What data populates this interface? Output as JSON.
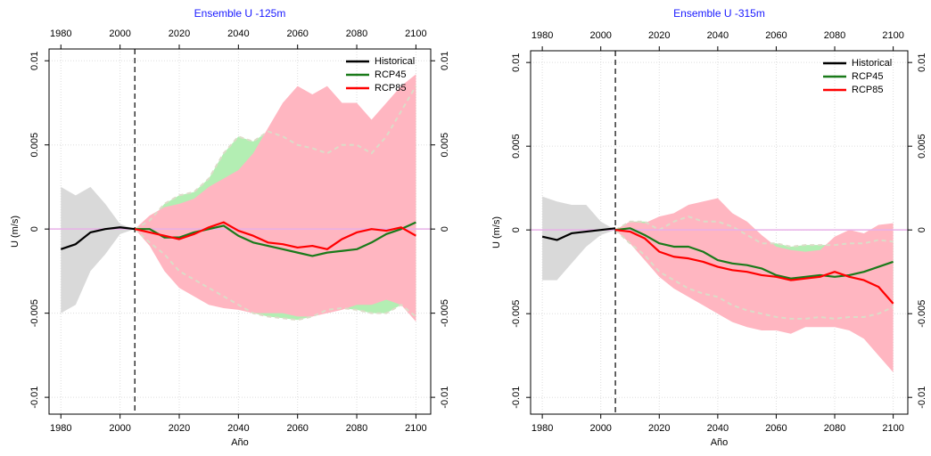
{
  "chart_data": [
    {
      "type": "line",
      "title": "Ensemble U -125m",
      "xlabel": "Año",
      "ylabel": "U (m/s)",
      "xlim": [
        1976,
        2105
      ],
      "ylim": [
        -0.011,
        0.0107
      ],
      "xticks": [
        1980,
        2000,
        2020,
        2040,
        2060,
        2080,
        2100
      ],
      "yticks": [
        -0.01,
        -0.005,
        0,
        0.005,
        0.01
      ],
      "grid": true,
      "legend": "topright",
      "vline_x": 2005,
      "hline_y": 0,
      "series": [
        {
          "name": "Historical",
          "color": "#000000",
          "band_color": "#d9d9d9",
          "x": [
            1980,
            1985,
            1990,
            1995,
            2000,
            2005
          ],
          "values": [
            -0.0012,
            -0.0009,
            -0.0002,
            0,
            0.0001,
            0
          ],
          "upper": [
            0.0025,
            0.002,
            0.0025,
            0.0015,
            0.0003,
            0
          ],
          "lower": [
            -0.005,
            -0.0045,
            -0.0025,
            -0.0015,
            -0.0003,
            0
          ]
        },
        {
          "name": "RCP45",
          "color": "#1a7a1a",
          "band_color": "#b3eeb3",
          "x": [
            2005,
            2010,
            2015,
            2020,
            2025,
            2030,
            2035,
            2040,
            2045,
            2050,
            2055,
            2060,
            2065,
            2070,
            2075,
            2080,
            2085,
            2090,
            2095,
            2100
          ],
          "values": [
            0,
            0,
            -0.0005,
            -0.0005,
            -0.0002,
            0,
            0.0002,
            -0.0004,
            -0.0008,
            -0.001,
            -0.0012,
            -0.0014,
            -0.0016,
            -0.0014,
            -0.0013,
            -0.0012,
            -0.0008,
            -0.0003,
            0,
            0.0004
          ],
          "upper": [
            0,
            0.0005,
            0.0015,
            0.002,
            0.0022,
            0.003,
            0.0045,
            0.0055,
            0.0052,
            0.0058,
            0.0055,
            0.005,
            0.0048,
            0.0045,
            0.005,
            0.005,
            0.0045,
            0.0055,
            0.007,
            0.0085
          ],
          "lower": [
            0,
            -0.0008,
            -0.0015,
            -0.0025,
            -0.003,
            -0.0035,
            -0.004,
            -0.0045,
            -0.005,
            -0.0052,
            -0.0053,
            -0.0054,
            -0.0052,
            -0.0048,
            -0.0047,
            -0.0048,
            -0.005,
            -0.005,
            -0.0045,
            -0.0052
          ]
        },
        {
          "name": "RCP85",
          "color": "#ff0000",
          "band_color": "#ffb6c1",
          "x": [
            2005,
            2010,
            2015,
            2020,
            2025,
            2030,
            2035,
            2040,
            2045,
            2050,
            2055,
            2060,
            2065,
            2070,
            2075,
            2080,
            2085,
            2090,
            2095,
            2100
          ],
          "values": [
            0,
            -0.0002,
            -0.0004,
            -0.0006,
            -0.0003,
            0.0001,
            0.0004,
            -0.0001,
            -0.0004,
            -0.0008,
            -0.0009,
            -0.0011,
            -0.001,
            -0.0012,
            -0.0006,
            -0.0002,
            0,
            -0.0001,
            0.0001,
            -0.0004
          ],
          "upper": [
            0,
            0.0008,
            0.0013,
            0.0015,
            0.0018,
            0.0025,
            0.003,
            0.0035,
            0.0045,
            0.006,
            0.0075,
            0.0085,
            0.008,
            0.0085,
            0.0075,
            0.0075,
            0.0065,
            0.0075,
            0.0085,
            0.0092
          ],
          "lower": [
            0,
            -0.001,
            -0.0025,
            -0.0035,
            -0.004,
            -0.0045,
            -0.0047,
            -0.0048,
            -0.005,
            -0.005,
            -0.005,
            -0.0052,
            -0.0052,
            -0.005,
            -0.0048,
            -0.0045,
            -0.0045,
            -0.0042,
            -0.0045,
            -0.0055
          ]
        }
      ]
    },
    {
      "type": "line",
      "title": "Ensemble U -315m",
      "xlabel": "Año",
      "ylabel": "U (m/s)",
      "xlim": [
        1976,
        2105
      ],
      "ylim": [
        -0.011,
        0.0107
      ],
      "xticks": [
        1980,
        2000,
        2020,
        2040,
        2060,
        2080,
        2100
      ],
      "yticks": [
        -0.01,
        -0.005,
        0,
        0.005,
        0.01
      ],
      "grid": true,
      "legend": "topright",
      "vline_x": 2005,
      "hline_y": 0,
      "series": [
        {
          "name": "Historical",
          "color": "#000000",
          "band_color": "#d9d9d9",
          "x": [
            1980,
            1985,
            1990,
            1995,
            2000,
            2005
          ],
          "values": [
            -0.0004,
            -0.0006,
            -0.0002,
            -0.0001,
            0,
            0.0001
          ],
          "upper": [
            0.002,
            0.0017,
            0.0015,
            0.0015,
            0.0005,
            0
          ],
          "lower": [
            -0.003,
            -0.003,
            -0.002,
            -0.001,
            -0.0003,
            0
          ]
        },
        {
          "name": "RCP45",
          "color": "#1a7a1a",
          "band_color": "#b3eeb3",
          "x": [
            2005,
            2010,
            2015,
            2020,
            2025,
            2030,
            2035,
            2040,
            2045,
            2050,
            2055,
            2060,
            2065,
            2070,
            2075,
            2080,
            2085,
            2090,
            2095,
            2100
          ],
          "values": [
            0,
            0.0001,
            -0.0003,
            -0.0008,
            -0.001,
            -0.001,
            -0.0013,
            -0.0018,
            -0.002,
            -0.0021,
            -0.0023,
            -0.0027,
            -0.0029,
            -0.0028,
            -0.0027,
            -0.0028,
            -0.0027,
            -0.0025,
            -0.0022,
            -0.0019
          ],
          "upper": [
            0,
            0.0005,
            0.0005,
            0,
            0.0005,
            0.0008,
            0.0005,
            0.0005,
            0.0002,
            -0.0003,
            -0.0008,
            -0.0008,
            -0.001,
            -0.0009,
            -0.0009,
            -0.0009,
            -0.0008,
            -0.0008,
            -0.0006,
            -0.0007
          ],
          "lower": [
            0,
            -0.0008,
            -0.0015,
            -0.0025,
            -0.003,
            -0.0035,
            -0.0038,
            -0.004,
            -0.0045,
            -0.0048,
            -0.005,
            -0.0052,
            -0.0053,
            -0.0053,
            -0.0052,
            -0.0053,
            -0.0052,
            -0.0052,
            -0.005,
            -0.0046
          ]
        },
        {
          "name": "RCP85",
          "color": "#ff0000",
          "band_color": "#ffb6c1",
          "x": [
            2005,
            2010,
            2015,
            2020,
            2025,
            2030,
            2035,
            2040,
            2045,
            2050,
            2055,
            2060,
            2065,
            2070,
            2075,
            2080,
            2085,
            2090,
            2095,
            2100
          ],
          "values": [
            0,
            -0.0001,
            -0.0005,
            -0.0013,
            -0.0016,
            -0.0017,
            -0.0019,
            -0.0022,
            -0.0024,
            -0.0025,
            -0.0027,
            -0.0028,
            -0.003,
            -0.0029,
            -0.0028,
            -0.0025,
            -0.0028,
            -0.003,
            -0.0034,
            -0.0044
          ],
          "upper": [
            0,
            0.0005,
            0.0004,
            0.0008,
            0.001,
            0.0015,
            0.0017,
            0.0019,
            0.001,
            0.0005,
            -0.0003,
            -0.001,
            -0.0012,
            -0.0013,
            -0.0012,
            -0.0004,
            0,
            -0.0002,
            0.0003,
            0.0004
          ],
          "lower": [
            0,
            -0.0008,
            -0.0018,
            -0.0028,
            -0.0035,
            -0.004,
            -0.0045,
            -0.005,
            -0.0055,
            -0.0058,
            -0.006,
            -0.006,
            -0.0062,
            -0.0058,
            -0.0058,
            -0.0058,
            -0.006,
            -0.0065,
            -0.0075,
            -0.0085
          ]
        }
      ]
    }
  ]
}
